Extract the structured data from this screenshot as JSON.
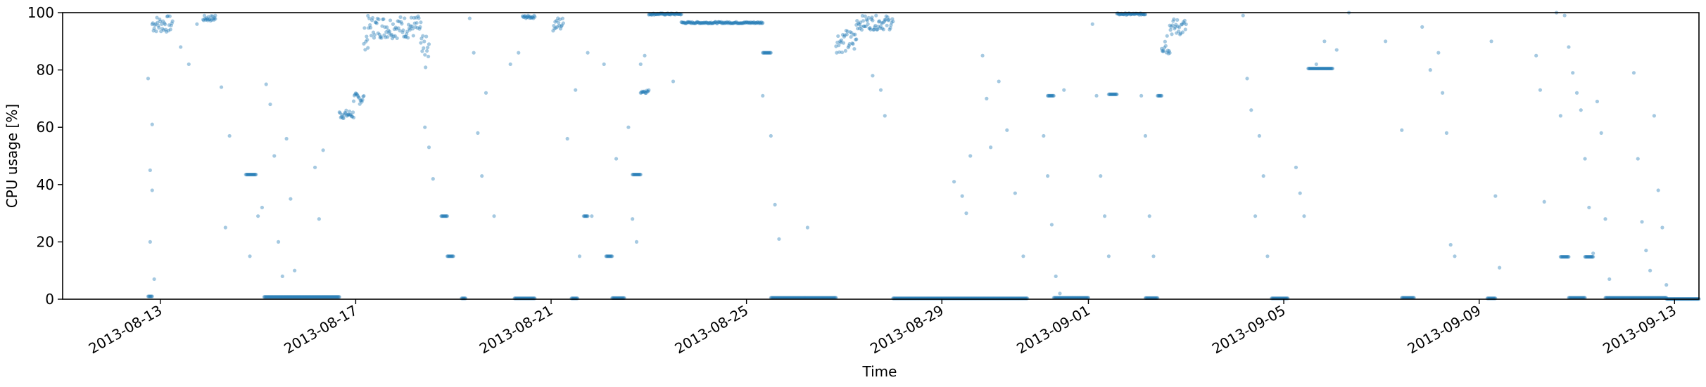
{
  "chart_data": {
    "type": "scatter",
    "xlabel": "Time",
    "ylabel": "CPU usage [%]",
    "xlim": [
      "2013-08-11T00:00",
      "2013-09-13T12:00"
    ],
    "ylim": [
      0,
      100
    ],
    "x_ticks": [
      "2013-08-13",
      "2013-08-17",
      "2013-08-21",
      "2013-08-25",
      "2013-08-29",
      "2013-09-01",
      "2013-09-05",
      "2013-09-09",
      "2013-09-13"
    ],
    "y_ticks": [
      0,
      20,
      40,
      60,
      80,
      100
    ],
    "grid": false,
    "marker_color": "#1f77b4",
    "marker_alpha": 0.4,
    "segments": [
      {
        "start": "2013-08-12T18:00",
        "end": "2013-08-12T20:00",
        "value": 1
      },
      {
        "start": "2013-08-12T20:00",
        "end": "2013-08-13T06:00",
        "value": 96,
        "spread": 3
      },
      {
        "start": "2013-08-13T21:00",
        "end": "2013-08-14T03:00",
        "value": 98,
        "spread": 1
      },
      {
        "start": "2013-08-14T18:00",
        "end": "2013-08-14T23:00",
        "value": 43.5
      },
      {
        "start": "2013-08-15T03:00",
        "end": "2013-08-16T16:00",
        "value": 0.8
      },
      {
        "start": "2013-08-16T16:00",
        "end": "2013-08-16T23:00",
        "value": 64.5,
        "spread": 1.5
      },
      {
        "start": "2013-08-16T23:00",
        "end": "2013-08-17T04:00",
        "value": 70,
        "spread": 2
      },
      {
        "start": "2013-08-17T04:00",
        "end": "2013-08-17T06:00",
        "value": 91,
        "spread": 4
      },
      {
        "start": "2013-08-17T06:00",
        "end": "2013-08-18T08:00",
        "value": 95,
        "spread": 4
      },
      {
        "start": "2013-08-18T08:00",
        "end": "2013-08-18T12:00",
        "value": 86,
        "spread": 6
      },
      {
        "start": "2013-08-18T18:00",
        "end": "2013-08-18T21:00",
        "value": 29
      },
      {
        "start": "2013-08-18T21:00",
        "end": "2013-08-19T00:00",
        "value": 15
      },
      {
        "start": "2013-08-19T04:00",
        "end": "2013-08-19T06:00",
        "value": 0.3
      },
      {
        "start": "2013-08-20T06:00",
        "end": "2013-08-20T16:00",
        "value": 0.3
      },
      {
        "start": "2013-08-20T10:00",
        "end": "2013-08-20T16:00",
        "value": 98.5,
        "spread": 0.5
      },
      {
        "start": "2013-08-21T01:00",
        "end": "2013-08-21T06:00",
        "value": 96,
        "spread": 2.5
      },
      {
        "start": "2013-08-21T10:00",
        "end": "2013-08-21T13:00",
        "value": 0.3
      },
      {
        "start": "2013-08-21T16:00",
        "end": "2013-08-21T18:00",
        "value": 29
      },
      {
        "start": "2013-08-22T03:00",
        "end": "2013-08-22T06:00",
        "value": 15
      },
      {
        "start": "2013-08-22T06:00",
        "end": "2013-08-22T12:00",
        "value": 0.4
      },
      {
        "start": "2013-08-22T16:00",
        "end": "2013-08-22T20:00",
        "value": 43.5
      },
      {
        "start": "2013-08-22T20:00",
        "end": "2013-08-23T00:00",
        "value": 72.5,
        "spread": 0.6
      },
      {
        "start": "2013-08-23T00:00",
        "end": "2013-08-23T16:00",
        "value": 99.5,
        "spread": 0.3
      },
      {
        "start": "2013-08-23T16:00",
        "end": "2013-08-25T08:00",
        "value": 96.5,
        "spread": 0.3
      },
      {
        "start": "2013-08-25T08:00",
        "end": "2013-08-25T12:00",
        "value": 86
      },
      {
        "start": "2013-08-25T12:00",
        "end": "2013-08-26T20:00",
        "value": 0.5
      },
      {
        "start": "2013-08-26T20:00",
        "end": "2013-08-27T06:00",
        "value": 90,
        "spread": 4
      },
      {
        "start": "2013-08-27T06:00",
        "end": "2013-08-28T00:00",
        "value": 96.5,
        "spread": 2.5
      },
      {
        "start": "2013-08-28T00:00",
        "end": "2013-08-30T18:00",
        "value": 0.3
      },
      {
        "start": "2013-08-31T04:00",
        "end": "2013-08-31T07:00",
        "value": 71
      },
      {
        "start": "2013-08-31T07:00",
        "end": "2013-09-01T00:00",
        "value": 0.5
      },
      {
        "start": "2013-09-01T10:00",
        "end": "2013-09-01T14:00",
        "value": 71.5
      },
      {
        "start": "2013-09-01T14:00",
        "end": "2013-09-02T04:00",
        "value": 99.5,
        "spread": 0.3
      },
      {
        "start": "2013-09-02T04:00",
        "end": "2013-09-02T10:00",
        "value": 0.4
      },
      {
        "start": "2013-09-02T10:00",
        "end": "2013-09-02T12:00",
        "value": 71
      },
      {
        "start": "2013-09-02T12:00",
        "end": "2013-09-02T16:00",
        "value": 90,
        "spread": 5
      },
      {
        "start": "2013-09-02T16:00",
        "end": "2013-09-03T00:00",
        "value": 95,
        "spread": 3
      },
      {
        "start": "2013-09-04T18:00",
        "end": "2013-09-05T02:00",
        "value": 0.3
      },
      {
        "start": "2013-09-05T12:00",
        "end": "2013-09-06T00:00",
        "value": 80.5
      },
      {
        "start": "2013-09-07T10:00",
        "end": "2013-09-07T16:00",
        "value": 0.5
      },
      {
        "start": "2013-09-09T04:00",
        "end": "2013-09-09T08:00",
        "value": 0.3
      },
      {
        "start": "2013-09-10T16:00",
        "end": "2013-09-10T20:00",
        "value": 14.8
      },
      {
        "start": "2013-09-10T20:00",
        "end": "2013-09-11T04:00",
        "value": 0.5
      },
      {
        "start": "2013-09-11T04:00",
        "end": "2013-09-11T08:00",
        "value": 14.8
      },
      {
        "start": "2013-09-11T14:00",
        "end": "2013-09-12T20:00",
        "value": 0.5
      },
      {
        "start": "2013-09-12T20:00",
        "end": "2013-09-23T00:00",
        "value": 0.1
      }
    ],
    "scatter_points": [
      [
        "2013-08-12T18:00",
        77
      ],
      [
        "2013-08-12T19:00",
        45
      ],
      [
        "2013-08-12T19:00",
        20
      ],
      [
        "2013-08-12T20:00",
        61
      ],
      [
        "2013-08-12T20:00",
        38
      ],
      [
        "2013-08-12T21:00",
        7
      ],
      [
        "2013-08-13T10:00",
        88
      ],
      [
        "2013-08-13T14:00",
        82
      ],
      [
        "2013-08-13T18:00",
        96
      ],
      [
        "2013-08-14T03:00",
        99
      ],
      [
        "2013-08-14T06:00",
        74
      ],
      [
        "2013-08-14T08:00",
        25
      ],
      [
        "2013-08-14T10:00",
        57
      ],
      [
        "2013-08-14T20:00",
        15
      ],
      [
        "2013-08-15T00:00",
        29
      ],
      [
        "2013-08-15T02:00",
        32
      ],
      [
        "2013-08-15T04:00",
        75
      ],
      [
        "2013-08-15T06:00",
        68
      ],
      [
        "2013-08-15T08:00",
        50
      ],
      [
        "2013-08-15T10:00",
        20
      ],
      [
        "2013-08-15T12:00",
        8
      ],
      [
        "2013-08-15T14:00",
        56
      ],
      [
        "2013-08-15T16:00",
        35
      ],
      [
        "2013-08-15T18:00",
        10
      ],
      [
        "2013-08-16T04:00",
        46
      ],
      [
        "2013-08-16T06:00",
        28
      ],
      [
        "2013-08-16T08:00",
        52
      ],
      [
        "2013-08-18T10:00",
        60
      ],
      [
        "2013-08-18T12:00",
        53
      ],
      [
        "2013-08-18T14:00",
        42
      ],
      [
        "2013-08-19T08:00",
        98
      ],
      [
        "2013-08-19T10:00",
        86
      ],
      [
        "2013-08-19T12:00",
        58
      ],
      [
        "2013-08-19T14:00",
        43
      ],
      [
        "2013-08-19T16:00",
        72
      ],
      [
        "2013-08-19T20:00",
        29
      ],
      [
        "2013-08-20T04:00",
        82
      ],
      [
        "2013-08-20T08:00",
        86
      ],
      [
        "2013-08-21T08:00",
        56
      ],
      [
        "2013-08-21T12:00",
        73
      ],
      [
        "2013-08-21T14:00",
        15
      ],
      [
        "2013-08-21T18:00",
        86
      ],
      [
        "2013-08-21T20:00",
        29
      ],
      [
        "2013-08-22T02:00",
        82
      ],
      [
        "2013-08-22T08:00",
        49
      ],
      [
        "2013-08-22T14:00",
        60
      ],
      [
        "2013-08-22T16:00",
        28
      ],
      [
        "2013-08-22T18:00",
        20
      ],
      [
        "2013-08-22T20:00",
        82
      ],
      [
        "2013-08-22T22:00",
        85
      ],
      [
        "2013-08-23T12:00",
        76
      ],
      [
        "2013-08-25T08:00",
        71
      ],
      [
        "2013-08-25T12:00",
        57
      ],
      [
        "2013-08-25T14:00",
        33
      ],
      [
        "2013-08-25T16:00",
        21
      ],
      [
        "2013-08-26T06:00",
        25
      ],
      [
        "2013-08-27T14:00",
        78
      ],
      [
        "2013-08-27T18:00",
        73
      ],
      [
        "2013-08-27T20:00",
        64
      ],
      [
        "2013-08-29T06:00",
        41
      ],
      [
        "2013-08-29T10:00",
        36
      ],
      [
        "2013-08-29T12:00",
        30
      ],
      [
        "2013-08-29T14:00",
        50
      ],
      [
        "2013-08-29T20:00",
        85
      ],
      [
        "2013-08-29T22:00",
        70
      ],
      [
        "2013-08-30T00:00",
        53
      ],
      [
        "2013-08-30T04:00",
        76
      ],
      [
        "2013-08-30T08:00",
        59
      ],
      [
        "2013-08-30T12:00",
        37
      ],
      [
        "2013-08-30T16:00",
        15
      ],
      [
        "2013-08-31T02:00",
        57
      ],
      [
        "2013-08-31T04:00",
        43
      ],
      [
        "2013-08-31T06:00",
        26
      ],
      [
        "2013-08-31T08:00",
        8
      ],
      [
        "2013-08-31T10:00",
        2
      ],
      [
        "2013-08-31T12:00",
        73
      ],
      [
        "2013-09-01T02:00",
        96
      ],
      [
        "2013-09-01T04:00",
        71
      ],
      [
        "2013-09-01T06:00",
        43
      ],
      [
        "2013-09-01T08:00",
        29
      ],
      [
        "2013-09-01T10:00",
        15
      ],
      [
        "2013-09-02T02:00",
        71
      ],
      [
        "2013-09-02T04:00",
        57
      ],
      [
        "2013-09-02T06:00",
        29
      ],
      [
        "2013-09-02T08:00",
        15
      ],
      [
        "2013-09-04T04:00",
        99
      ],
      [
        "2013-09-04T06:00",
        77
      ],
      [
        "2013-09-04T08:00",
        66
      ],
      [
        "2013-09-04T10:00",
        29
      ],
      [
        "2013-09-04T12:00",
        57
      ],
      [
        "2013-09-04T14:00",
        43
      ],
      [
        "2013-09-04T16:00",
        15
      ],
      [
        "2013-09-05T06:00",
        46
      ],
      [
        "2013-09-05T08:00",
        37
      ],
      [
        "2013-09-05T10:00",
        29
      ],
      [
        "2013-09-05T16:00",
        82
      ],
      [
        "2013-09-05T20:00",
        90
      ],
      [
        "2013-09-06T02:00",
        87
      ],
      [
        "2013-09-06T08:00",
        100
      ],
      [
        "2013-09-07T02:00",
        90
      ],
      [
        "2013-09-07T10:00",
        59
      ],
      [
        "2013-09-07T20:00",
        95
      ],
      [
        "2013-09-08T00:00",
        80
      ],
      [
        "2013-09-08T04:00",
        86
      ],
      [
        "2013-09-08T06:00",
        72
      ],
      [
        "2013-09-08T08:00",
        58
      ],
      [
        "2013-09-08T10:00",
        19
      ],
      [
        "2013-09-08T12:00",
        15
      ],
      [
        "2013-09-09T06:00",
        90
      ],
      [
        "2013-09-09T08:00",
        36
      ],
      [
        "2013-09-09T10:00",
        11
      ],
      [
        "2013-09-10T04:00",
        85
      ],
      [
        "2013-09-10T06:00",
        73
      ],
      [
        "2013-09-10T08:00",
        34
      ],
      [
        "2013-09-10T14:00",
        100
      ],
      [
        "2013-09-10T16:00",
        64
      ],
      [
        "2013-09-10T18:00",
        99
      ],
      [
        "2013-09-10T20:00",
        88
      ],
      [
        "2013-09-10T22:00",
        79
      ],
      [
        "2013-09-11T00:00",
        72
      ],
      [
        "2013-09-11T02:00",
        66
      ],
      [
        "2013-09-11T04:00",
        49
      ],
      [
        "2013-09-11T06:00",
        32
      ],
      [
        "2013-09-11T08:00",
        16
      ],
      [
        "2013-09-11T10:00",
        69
      ],
      [
        "2013-09-11T12:00",
        58
      ],
      [
        "2013-09-11T14:00",
        28
      ],
      [
        "2013-09-11T16:00",
        7
      ],
      [
        "2013-09-12T04:00",
        79
      ],
      [
        "2013-09-12T06:00",
        49
      ],
      [
        "2013-09-12T08:00",
        27
      ],
      [
        "2013-09-12T10:00",
        17
      ],
      [
        "2013-09-12T12:00",
        10
      ],
      [
        "2013-09-12T14:00",
        64
      ],
      [
        "2013-09-12T16:00",
        38
      ],
      [
        "2013-09-12T18:00",
        25
      ],
      [
        "2013-09-12T20:00",
        5
      ]
    ]
  }
}
